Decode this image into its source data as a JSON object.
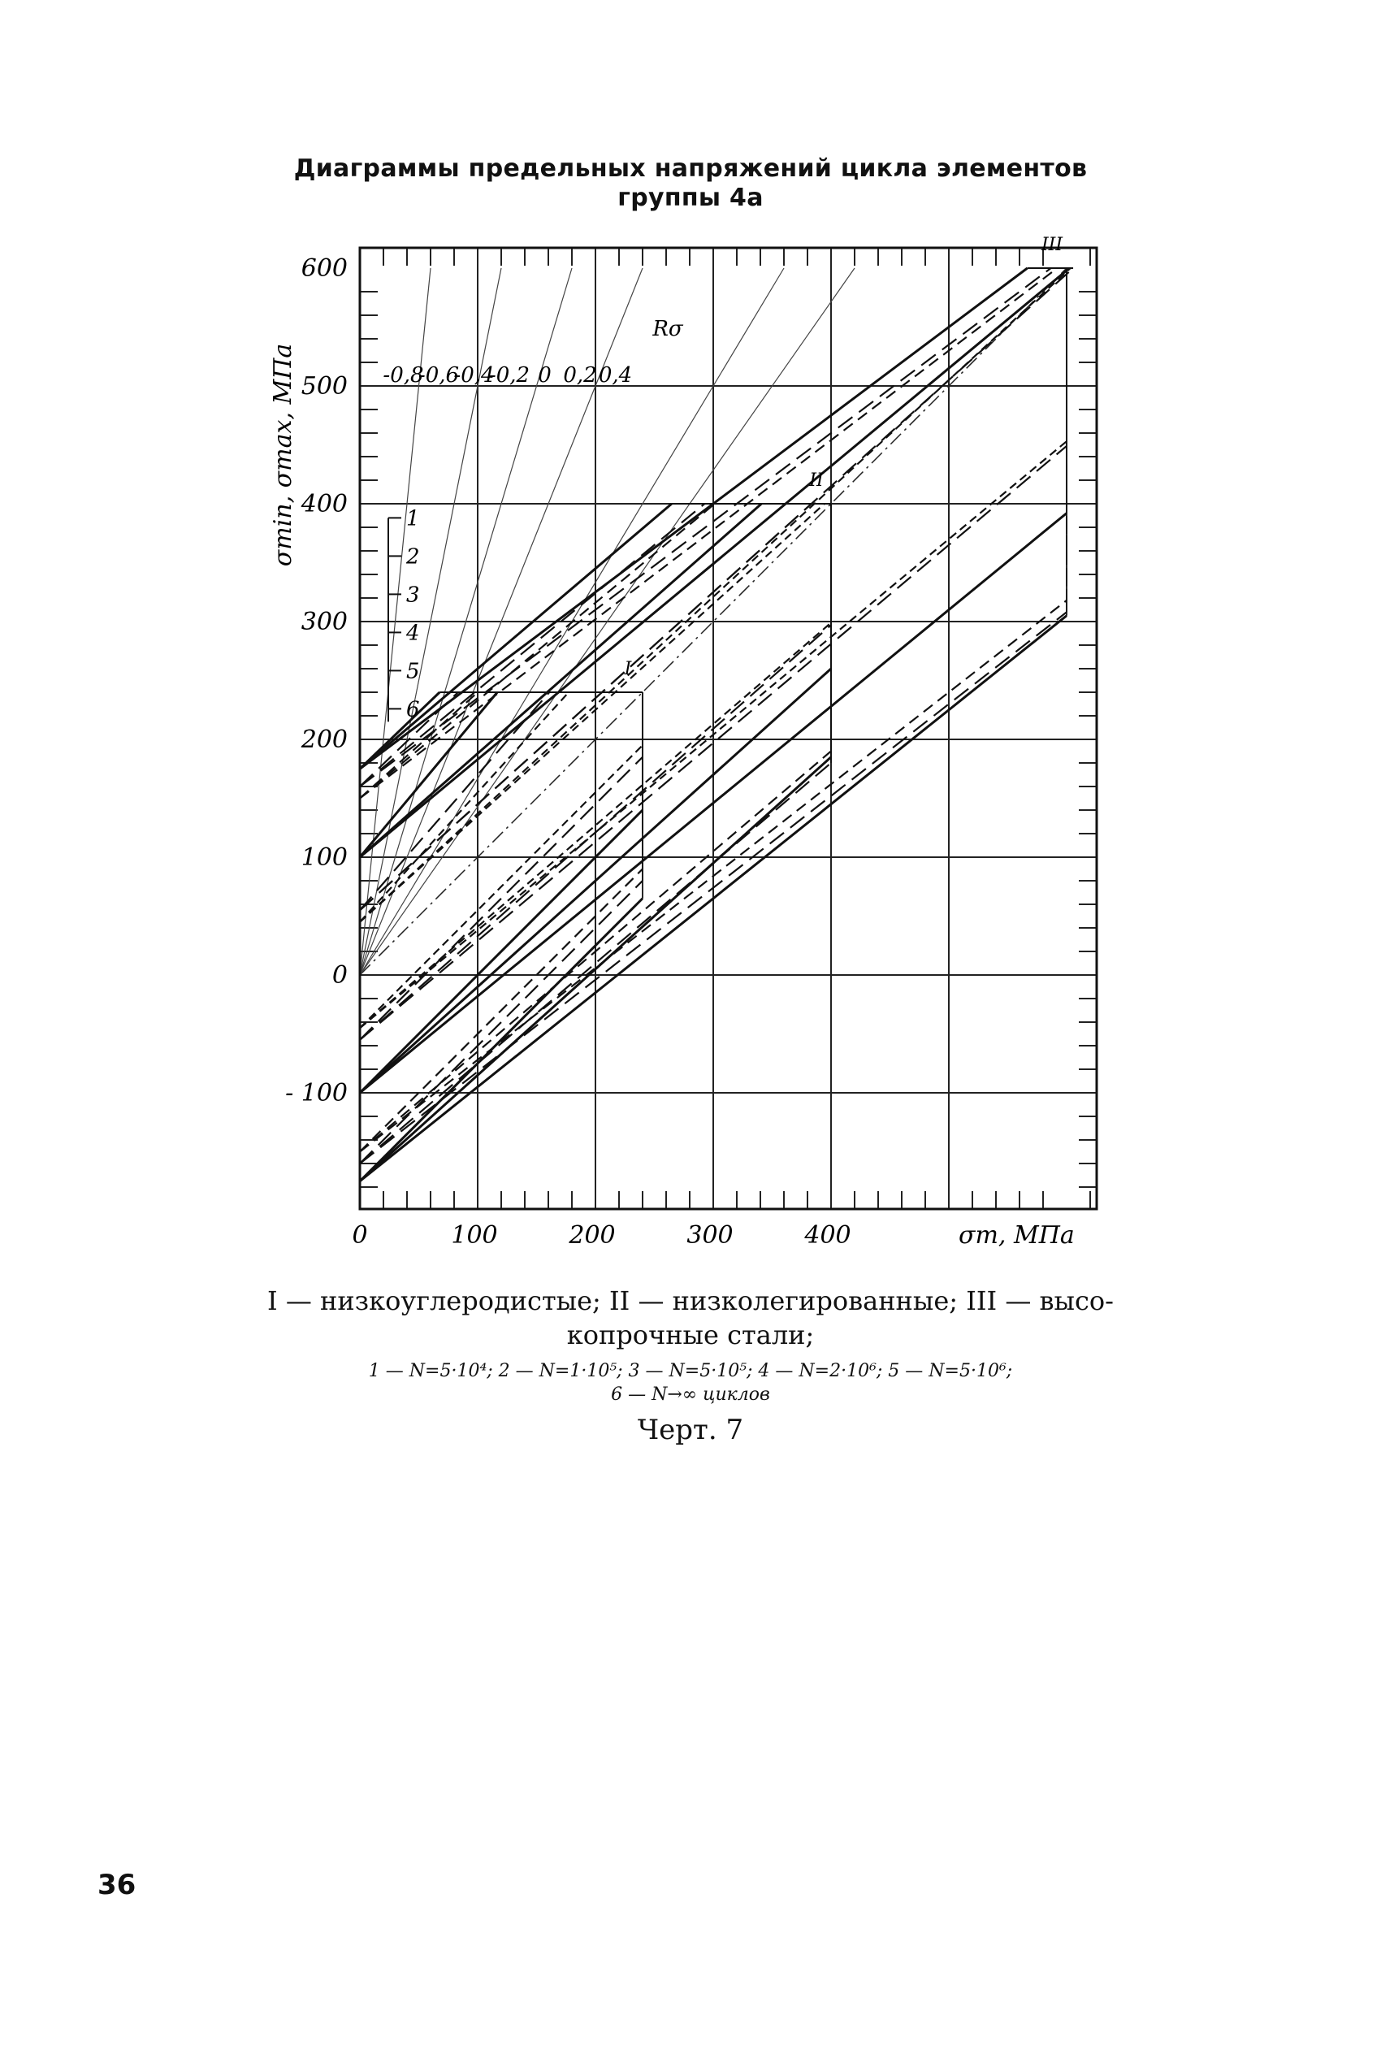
{
  "title_line1": "Диаграммы предельных напряжений цикла элементов",
  "title_line2": "группы 4а",
  "legend": {
    "materials_line1": "I — низкоуглеродистые; II — низколегированные; III — высо-",
    "materials_line2": "копрочные стали;",
    "cycles_line1": "1 — N=5·10⁴; 2 — N=1·10⁵; 3 — N=5·10⁵; 4 — N=2·10⁶; 5 — N=5·10⁶;",
    "cycles_line2": "6 — N→∞ циклов"
  },
  "caption": "Черт. 7",
  "page_number": "36",
  "chart_data": {
    "type": "line",
    "title": "Диаграммы предельных напряжений цикла элементов группы 4а",
    "xlabel": "σm, МПа",
    "ylabel": "σmin, σmax, МПа",
    "xlim": [
      0,
      620
    ],
    "ylim": [
      -200,
      610
    ],
    "x_ticks": [
      "0",
      "100",
      "200",
      "300",
      "400"
    ],
    "y_ticks": [
      "600",
      "500",
      "400",
      "300",
      "200",
      "100",
      "0",
      "- 100"
    ],
    "x_tick_values": [
      0,
      100,
      200,
      300,
      400
    ],
    "y_tick_values": [
      600,
      500,
      400,
      300,
      200,
      100,
      0,
      -100
    ],
    "grid": true,
    "r_scale": {
      "label": "Rσ",
      "ticks": [
        "-0,8",
        "-0,6",
        "-0,4",
        "-0,2",
        "0",
        "0,2",
        "0,4"
      ],
      "values": [
        -0.8,
        -0.6,
        -0.4,
        -0.2,
        0,
        0.2,
        0.4
      ]
    },
    "curve_numbers": [
      "1",
      "2",
      "3",
      "4",
      "5",
      "6"
    ],
    "materials": [
      {
        "label": "I",
        "cap": 240,
        "tip": [
          240,
          240
        ],
        "series": [
          {
            "name": "1",
            "max_at_0": 175,
            "min_at_0": -175,
            "max_slope": 0.96,
            "min_slope": 1.0
          },
          {
            "name": "2",
            "max_at_0": 160,
            "min_at_0": -160,
            "max_slope": 0.96,
            "min_slope": 1.0
          },
          {
            "name": "3",
            "max_at_0": 150,
            "min_at_0": -150,
            "max_slope": 0.9,
            "min_slope": 1.0
          },
          {
            "name": "4",
            "max_at_0": 100,
            "min_at_0": -100,
            "max_slope": 1.2,
            "min_slope": 1.0
          },
          {
            "name": "5",
            "max_at_0": 55,
            "min_at_0": -55,
            "max_slope": 1.15,
            "min_slope": 1.0
          },
          {
            "name": "6",
            "max_at_0": 45,
            "min_at_0": -45,
            "max_slope": 1.1,
            "min_slope": 1.0
          }
        ]
      },
      {
        "label": "II",
        "cap": 400,
        "tip": [
          400,
          400
        ],
        "series": [
          {
            "name": "1",
            "max_at_0": 175,
            "min_at_0": -175,
            "max_slope": 0.85,
            "min_slope": 0.9
          },
          {
            "name": "2",
            "max_at_0": 160,
            "min_at_0": -160,
            "max_slope": 0.82,
            "min_slope": 0.85
          },
          {
            "name": "3",
            "max_at_0": 150,
            "min_at_0": -150,
            "max_slope": 0.83,
            "min_slope": 0.85
          },
          {
            "name": "4",
            "max_at_0": 100,
            "min_at_0": -100,
            "max_slope": 0.88,
            "min_slope": 0.9
          },
          {
            "name": "5",
            "max_at_0": 55,
            "min_at_0": -55,
            "max_slope": 0.9,
            "min_slope": 0.88
          },
          {
            "name": "6",
            "max_at_0": 45,
            "min_at_0": -45,
            "max_slope": 0.9,
            "min_slope": 0.86
          }
        ]
      },
      {
        "label": "III",
        "cap": 600,
        "tip": [
          600,
          600
        ],
        "series": [
          {
            "name": "1",
            "max_at_0": 175,
            "min_at_0": -175,
            "max_slope": 0.75,
            "min_slope": 0.8
          },
          {
            "name": "2",
            "max_at_0": 160,
            "min_at_0": -160,
            "max_slope": 0.75,
            "min_slope": 0.78
          },
          {
            "name": "3",
            "max_at_0": 150,
            "min_at_0": -150,
            "max_slope": 0.76,
            "min_slope": 0.78
          },
          {
            "name": "4",
            "max_at_0": 100,
            "min_at_0": -100,
            "max_slope": 0.83,
            "min_slope": 0.82
          },
          {
            "name": "5",
            "max_at_0": 55,
            "min_at_0": -55,
            "max_slope": 0.9,
            "min_slope": 0.84
          },
          {
            "name": "6",
            "max_at_0": 45,
            "min_at_0": -45,
            "max_slope": 0.92,
            "min_slope": 0.83
          }
        ]
      }
    ]
  }
}
